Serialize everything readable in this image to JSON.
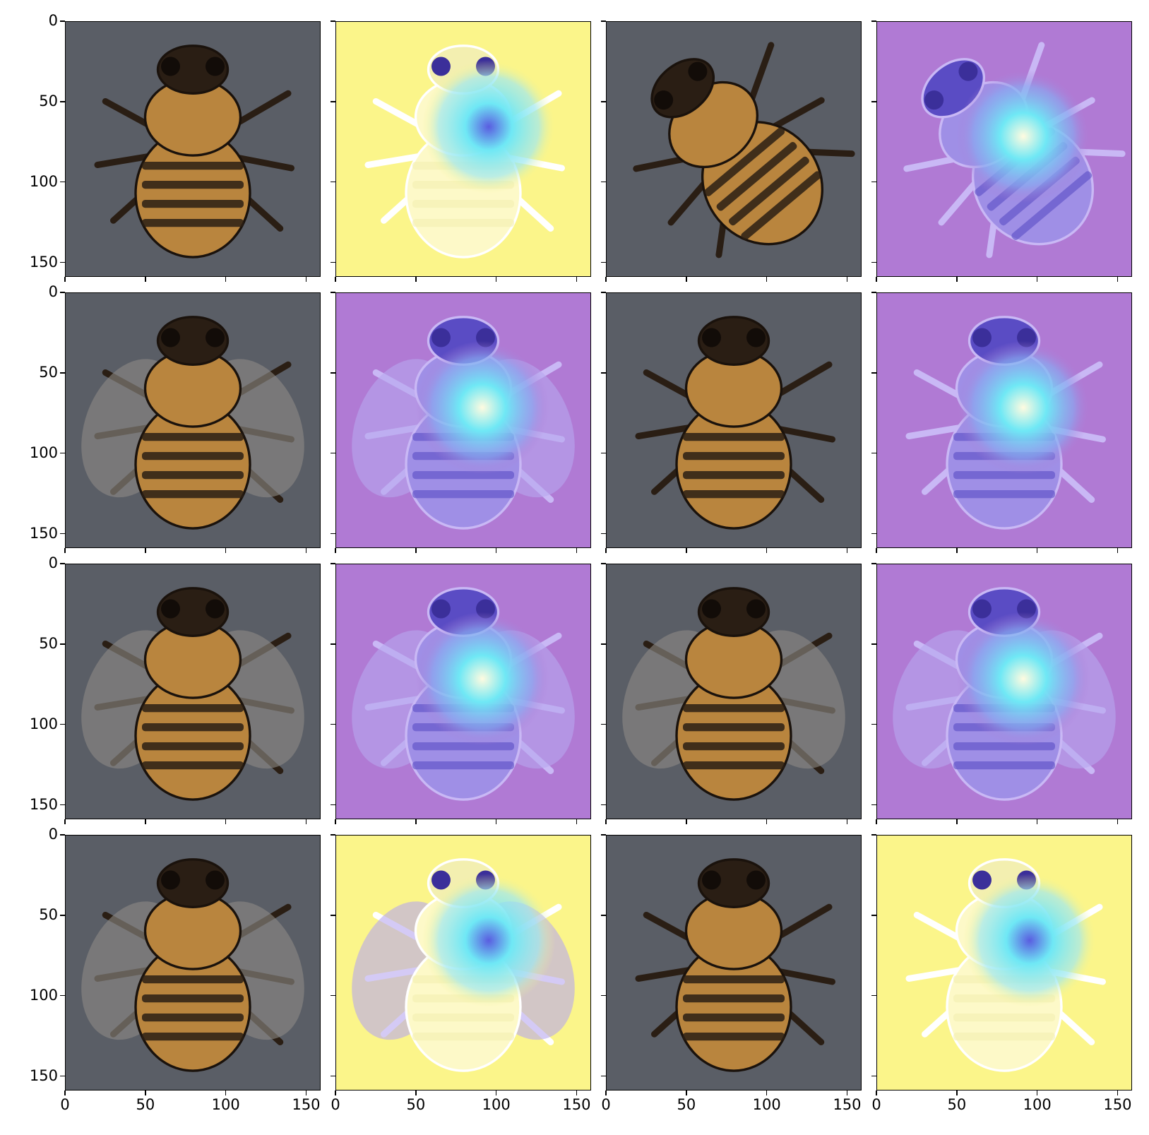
{
  "figure": {
    "rows": 4,
    "cols": 4,
    "x_ticks": [
      "0",
      "50",
      "100",
      "150"
    ],
    "y_ticks": [
      "0",
      "50",
      "100",
      "150"
    ],
    "colors": {
      "background_gray": "#5a5e66",
      "bee_amber": "#b9853e",
      "bee_dark": "#2a1e14",
      "overlay_yellow": "#fbf58a",
      "overlay_purple": "#b07ad4",
      "hotspot_cyan": "#6fe8f5",
      "hotspot_blue": "#5a5de0"
    },
    "panels": [
      {
        "kind": "photo",
        "subject": "bee-ventral"
      },
      {
        "kind": "heatmap-yellow",
        "subject": "bee-ventral"
      },
      {
        "kind": "photo",
        "subject": "bee-ventral-diagonal"
      },
      {
        "kind": "heatmap-purple",
        "subject": "bee-ventral-diagonal"
      },
      {
        "kind": "photo",
        "subject": "bee-dorsal"
      },
      {
        "kind": "heatmap-purple",
        "subject": "bee-dorsal"
      },
      {
        "kind": "photo",
        "subject": "bee-ventral"
      },
      {
        "kind": "heatmap-purple",
        "subject": "bee-ventral"
      },
      {
        "kind": "photo",
        "subject": "bee-dorsal"
      },
      {
        "kind": "heatmap-purple",
        "subject": "bee-dorsal"
      },
      {
        "kind": "photo",
        "subject": "bee-dorsal"
      },
      {
        "kind": "heatmap-purple",
        "subject": "bee-dorsal"
      },
      {
        "kind": "photo",
        "subject": "bee-dorsal"
      },
      {
        "kind": "heatmap-yellow",
        "subject": "bee-dorsal"
      },
      {
        "kind": "photo",
        "subject": "bee-ventral"
      },
      {
        "kind": "heatmap-yellow",
        "subject": "bee-ventral"
      }
    ]
  }
}
